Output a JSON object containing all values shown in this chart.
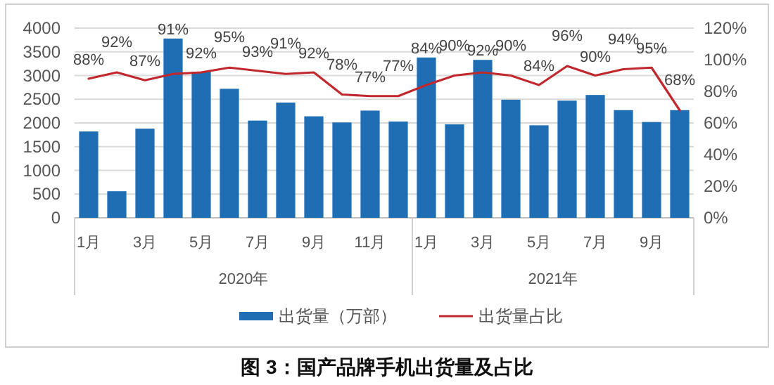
{
  "chart_data": {
    "type": "bar",
    "title": "图 3：国产品牌手机出货量及占比",
    "categories": [
      "1月",
      null,
      "3月",
      null,
      "5月",
      null,
      "7月",
      null,
      "9月",
      null,
      "11月",
      null,
      "1月",
      null,
      "3月",
      null,
      "5月",
      null,
      "7月",
      null,
      "9月",
      null
    ],
    "annotations": [
      "2020年",
      "2021年"
    ],
    "series": [
      {
        "name": "出货量（万部）",
        "type": "bar",
        "color": "#1f6db3",
        "values": [
          1820,
          560,
          1880,
          3780,
          3080,
          2720,
          2050,
          2430,
          2140,
          2010,
          2260,
          2030,
          3380,
          1970,
          3330,
          2490,
          1950,
          2470,
          2590,
          2270,
          2020,
          2270
        ]
      },
      {
        "name": "出货量占比",
        "type": "line",
        "axis": "y2",
        "color": "#c0282d",
        "values": [
          88,
          92,
          87,
          91,
          92,
          95,
          93,
          91,
          92,
          78,
          77,
          77,
          84,
          90,
          92,
          90,
          84,
          96,
          90,
          94,
          95,
          68
        ],
        "value_labels": [
          "88%",
          "92%",
          "87%",
          "91%",
          "92%",
          "95%",
          "93%",
          "91%",
          "92%",
          "78%",
          "77%",
          "77%",
          "84%",
          "90%",
          "92%",
          "90%",
          "84%",
          "96%",
          "90%",
          "94%",
          "95%",
          "68%"
        ]
      }
    ],
    "ylim": [
      0,
      4000
    ],
    "yticks": [
      0,
      500,
      1000,
      1500,
      2000,
      2500,
      3000,
      3500,
      4000
    ],
    "y2lim": [
      0,
      120
    ],
    "y2ticks": [
      {
        "value": 0,
        "label": "0%"
      },
      {
        "value": 20,
        "label": "20%"
      },
      {
        "value": 40,
        "label": "40%"
      },
      {
        "value": 60,
        "label": "60%"
      },
      {
        "value": 80,
        "label": "80%"
      },
      {
        "value": 100,
        "label": "100%"
      },
      {
        "value": 120,
        "label": "120%"
      }
    ],
    "grid": "y",
    "legend": "bottom"
  }
}
